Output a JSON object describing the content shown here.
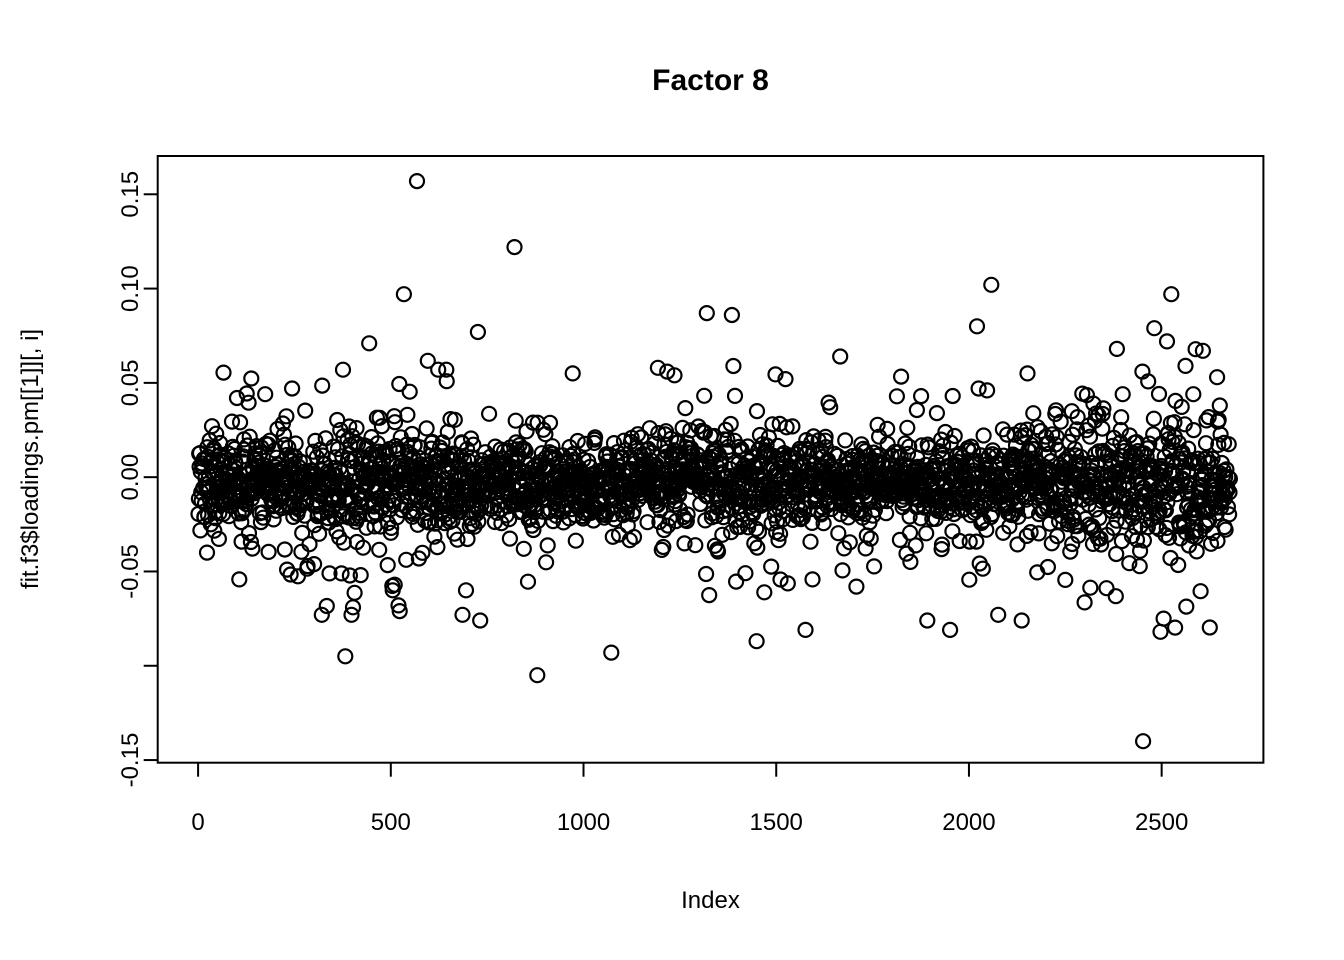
{
  "chart_data": {
    "type": "scatter",
    "title": "Factor 8",
    "xlabel": "Index",
    "ylabel": "fit.f3$loadings.pm[[1]][, i]",
    "background": "#ffffff",
    "axis_color": "#000000",
    "marker": {
      "shape": "open-circle",
      "color": "#000000",
      "radius_px": 7,
      "stroke_px": 2.2
    },
    "grid": false,
    "legend": null,
    "n_points": 2677,
    "xlim": [
      -104.8,
      2764
    ],
    "ylim": [
      -0.1514,
      0.1703
    ],
    "x_ticks": [
      {
        "value": 0,
        "label": "0"
      },
      {
        "value": 500,
        "label": "500"
      },
      {
        "value": 1000,
        "label": "1000"
      },
      {
        "value": 1500,
        "label": "1500"
      },
      {
        "value": 2000,
        "label": "2000"
      },
      {
        "value": 2500,
        "label": "2500"
      }
    ],
    "y_ticks": [
      {
        "value": 0.15,
        "label": "0.15"
      },
      {
        "value": 0.1,
        "label": "0.10"
      },
      {
        "value": 0.05,
        "label": "0.05"
      },
      {
        "value": 0.0,
        "label": "0.00"
      },
      {
        "value": -0.05,
        "label": "-0.05"
      },
      {
        "value": -0.1,
        "label": ""
      },
      {
        "value": -0.15,
        "label": "-0.15"
      }
    ],
    "band": {
      "seed": 86420137,
      "mean": -0.0035,
      "sd_core": 0.0115,
      "sd_mid": 0.019,
      "sd_tail": 0.027,
      "weights": [
        0.72,
        0.23,
        0.05
      ],
      "clip": 0.062,
      "sd_profile": [
        [
          0,
          0.95
        ],
        [
          250,
          1.05
        ],
        [
          450,
          1.18
        ],
        [
          650,
          1.12
        ],
        [
          800,
          1.0
        ],
        [
          950,
          0.9
        ],
        [
          1100,
          1.0
        ],
        [
          1250,
          1.1
        ],
        [
          1400,
          1.05
        ],
        [
          1550,
          0.95
        ],
        [
          1750,
          0.92
        ],
        [
          1950,
          0.92
        ],
        [
          2100,
          1.0
        ],
        [
          2250,
          1.12
        ],
        [
          2420,
          1.3
        ],
        [
          2560,
          1.35
        ],
        [
          2677,
          1.28
        ]
      ]
    },
    "outliers": [
      [
        568,
        0.157
      ],
      [
        821,
        0.122
      ],
      [
        2058,
        0.102
      ],
      [
        534,
        0.097
      ],
      [
        2525,
        0.097
      ],
      [
        2021,
        0.08
      ],
      [
        2481,
        0.079
      ],
      [
        726,
        0.077
      ],
      [
        2514,
        0.072
      ],
      [
        444,
        0.071
      ],
      [
        2384,
        0.068
      ],
      [
        2607,
        0.067
      ],
      [
        1320,
        0.087
      ],
      [
        1385,
        0.086
      ],
      [
        1666,
        0.064
      ],
      [
        2562,
        0.059
      ],
      [
        1193,
        0.058
      ],
      [
        376,
        0.057
      ],
      [
        623,
        0.057
      ],
      [
        644,
        0.057
      ],
      [
        1217,
        0.056
      ],
      [
        2152,
        0.055
      ],
      [
        972,
        0.055
      ],
      [
        2450,
        0.056
      ],
      [
        1236,
        0.054
      ],
      [
        2644,
        0.053
      ],
      [
        1524,
        0.052
      ],
      [
        2025,
        0.047
      ],
      [
        2047,
        0.046
      ],
      [
        244,
        0.047
      ],
      [
        2399,
        0.044
      ],
      [
        174,
        0.044
      ],
      [
        2582,
        0.044
      ],
      [
        1876,
        0.043
      ],
      [
        101,
        0.042
      ],
      [
        2323,
        0.039
      ],
      [
        2651,
        0.038
      ],
      [
        2267,
        0.035
      ],
      [
        1917,
        0.034
      ],
      [
        2327,
        0.03
      ],
      [
        2452,
        -0.14
      ],
      [
        880,
        -0.105
      ],
      [
        382,
        -0.095
      ],
      [
        1072,
        -0.093
      ],
      [
        1449,
        -0.087
      ],
      [
        1576,
        -0.081
      ],
      [
        1951,
        -0.081
      ],
      [
        2497,
        -0.082
      ],
      [
        1892,
        -0.076
      ],
      [
        2137,
        -0.076
      ],
      [
        732,
        -0.076
      ],
      [
        2505,
        -0.075
      ],
      [
        321,
        -0.073
      ],
      [
        686,
        -0.073
      ],
      [
        398,
        -0.073
      ],
      [
        2076,
        -0.073
      ],
      [
        523,
        -0.071
      ],
      [
        402,
        -0.069
      ],
      [
        520,
        -0.068
      ],
      [
        695,
        -0.06
      ],
      [
        505,
        -0.06
      ],
      [
        1708,
        -0.058
      ],
      [
        510,
        -0.057
      ],
      [
        231,
        -0.049
      ],
      [
        341,
        -0.051
      ],
      [
        372,
        -0.051
      ],
      [
        23,
        -0.04
      ]
    ]
  }
}
